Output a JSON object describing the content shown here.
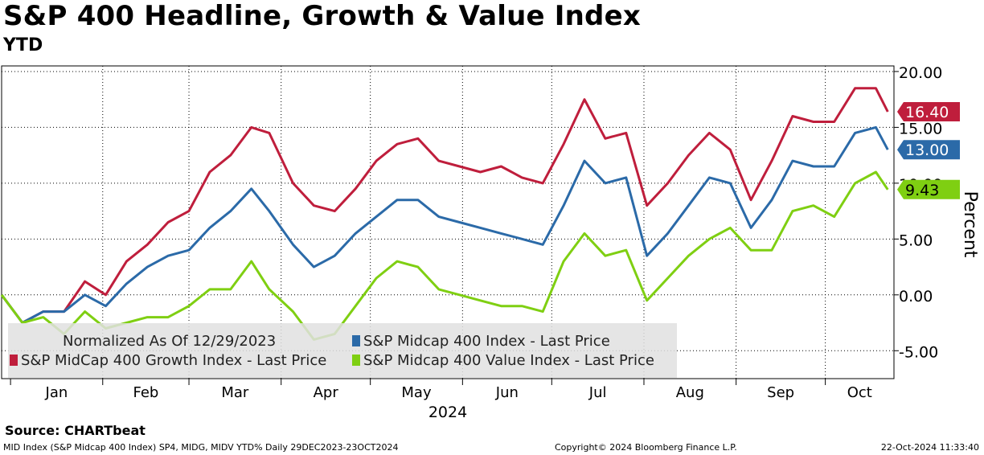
{
  "header": {
    "title": "S&P 400 Headline, Growth & Value Index",
    "subtitle": "YTD"
  },
  "legend": {
    "note": "Normalized As Of 12/29/2023",
    "items": [
      {
        "label": "S&P Midcap 400 Index - Last Price",
        "color": "#2b6aa8"
      },
      {
        "label": "S&P MidCap 400 Growth Index - Last Price",
        "color": "#bf1e3c"
      },
      {
        "label": "S&P Midcap 400 Value Index - Last Price",
        "color": "#7fcf12"
      }
    ]
  },
  "footer": {
    "source": "Source: CHARTbeat",
    "left": "MID Index (S&P Midcap 400 Index) SP4, MIDG, MIDV YTD%  Daily 29DEC2023-23OCT2024",
    "mid": "Copyright© 2024 Bloomberg Finance L.P.",
    "right": "22-Oct-2024 11:33:40"
  },
  "chart_data": {
    "type": "line",
    "xlabel": "2024",
    "ylabel": "Percent",
    "ylim": [
      -7.5,
      20.5
    ],
    "yticks": [
      "-5.00",
      "0.00",
      "5.00",
      "10.00",
      "15.00",
      "20.00"
    ],
    "ytick_values": [
      -5,
      0,
      5,
      10,
      15,
      20
    ],
    "months": [
      "Jan",
      "Feb",
      "Mar",
      "Apr",
      "May",
      "Jun",
      "Jul",
      "Aug",
      "Sep",
      "Oct"
    ],
    "grid": true,
    "x_start": "2023-12-29",
    "x_end": "2024-10-23",
    "x": [
      "2023-12-29",
      "2024-01-05",
      "2024-01-12",
      "2024-01-19",
      "2024-01-26",
      "2024-02-02",
      "2024-02-09",
      "2024-02-16",
      "2024-02-23",
      "2024-03-01",
      "2024-03-08",
      "2024-03-15",
      "2024-03-22",
      "2024-03-28",
      "2024-04-05",
      "2024-04-12",
      "2024-04-19",
      "2024-04-26",
      "2024-05-03",
      "2024-05-10",
      "2024-05-17",
      "2024-05-24",
      "2024-05-31",
      "2024-06-07",
      "2024-06-14",
      "2024-06-21",
      "2024-06-28",
      "2024-07-05",
      "2024-07-12",
      "2024-07-19",
      "2024-07-26",
      "2024-08-02",
      "2024-08-09",
      "2024-08-16",
      "2024-08-23",
      "2024-08-30",
      "2024-09-06",
      "2024-09-13",
      "2024-09-20",
      "2024-09-27",
      "2024-10-04",
      "2024-10-11",
      "2024-10-18",
      "2024-10-22"
    ],
    "series": [
      {
        "name": "S&P MidCap 400 Growth Index - Last Price",
        "color": "#bf1e3c",
        "values": [
          0.0,
          -2.5,
          -1.5,
          -1.5,
          1.2,
          0.0,
          3.0,
          4.5,
          6.5,
          7.5,
          11.0,
          12.5,
          15.0,
          14.5,
          10.0,
          8.0,
          7.5,
          9.5,
          12.0,
          13.5,
          14.0,
          12.0,
          11.5,
          11.0,
          11.5,
          10.5,
          10.0,
          13.5,
          17.5,
          14.0,
          14.5,
          8.0,
          10.0,
          12.5,
          14.5,
          13.0,
          8.5,
          12.0,
          16.0,
          15.5,
          15.5,
          18.5,
          18.5,
          16.4
        ]
      },
      {
        "name": "S&P Midcap 400 Index - Last Price",
        "color": "#2b6aa8",
        "values": [
          0.0,
          -2.5,
          -1.5,
          -1.5,
          0.0,
          -1.0,
          1.0,
          2.5,
          3.5,
          4.0,
          6.0,
          7.5,
          9.5,
          7.5,
          4.5,
          2.5,
          3.5,
          5.5,
          7.0,
          8.5,
          8.5,
          7.0,
          6.5,
          6.0,
          5.5,
          5.0,
          4.5,
          8.0,
          12.0,
          10.0,
          10.5,
          3.5,
          5.5,
          8.0,
          10.5,
          10.0,
          6.0,
          8.5,
          12.0,
          11.5,
          11.5,
          14.5,
          15.0,
          13.0
        ]
      },
      {
        "name": "S&P Midcap 400 Value Index - Last Price",
        "color": "#7fcf12",
        "values": [
          0.0,
          -2.5,
          -2.0,
          -3.5,
          -1.5,
          -3.0,
          -2.5,
          -2.0,
          -2.0,
          -1.0,
          0.5,
          0.5,
          3.0,
          0.5,
          -1.5,
          -4.0,
          -3.5,
          -1.0,
          1.5,
          3.0,
          2.5,
          0.5,
          0.0,
          -0.5,
          -1.0,
          -1.0,
          -1.5,
          3.0,
          5.5,
          3.5,
          4.0,
          -0.5,
          1.5,
          3.5,
          5.0,
          6.0,
          4.0,
          4.0,
          7.5,
          8.0,
          7.0,
          10.0,
          11.0,
          9.43
        ]
      }
    ],
    "last_labels": [
      {
        "text": "16.40",
        "value": 16.4,
        "color": "#bf1e3c"
      },
      {
        "text": "13.00",
        "value": 13.0,
        "color": "#2b6aa8"
      },
      {
        "text": "9.43",
        "value": 9.43,
        "color": "#7fcf12"
      }
    ]
  }
}
